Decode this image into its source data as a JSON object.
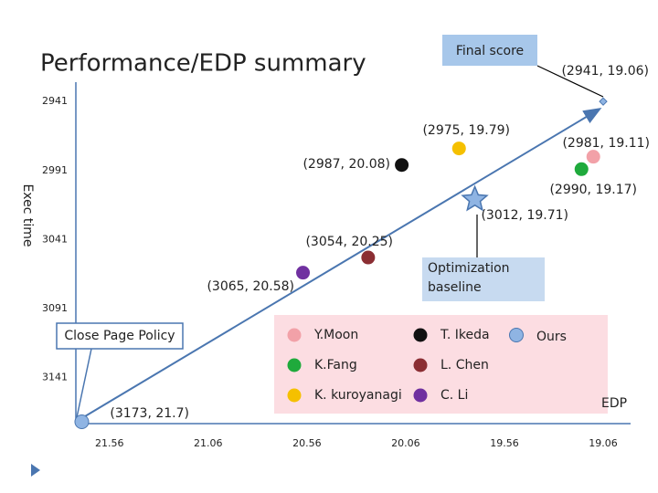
{
  "chart_data": {
    "type": "scatter",
    "title": "Performance/EDP summary",
    "xlabel": "EDP",
    "ylabel": "Exec time",
    "xlim": [
      21.73,
      19.0
    ],
    "ylim": [
      3173,
      2927
    ],
    "xticks": [
      21.56,
      21.06,
      20.56,
      20.06,
      19.56,
      19.06
    ],
    "yticks": [
      2941,
      2991,
      3041,
      3091,
      3141
    ],
    "annotations": [
      "Final score",
      "Optimization baseline",
      "Close Page Policy"
    ],
    "series": [
      {
        "name": "Y.Moon",
        "color": "#f2a1a8",
        "x": [
          19.11
        ],
        "values": [
          2981
        ],
        "value_labels": [
          "(2981, 19.11)"
        ]
      },
      {
        "name": "T. Ikeda",
        "color": "#111111",
        "x": [
          20.08
        ],
        "values": [
          2987
        ],
        "value_labels": [
          "(2987, 20.08)"
        ]
      },
      {
        "name": "Ours",
        "color": "#8fb4e3",
        "x": [
          19.06,
          19.71,
          21.7
        ],
        "values": [
          2941,
          3012,
          3173
        ],
        "value_labels": [
          "(2941, 19.06)",
          "(3012, 19.71)",
          "(3173, 21.7)"
        ]
      },
      {
        "name": "K.Fang",
        "color": "#1faa3c",
        "x": [
          19.17
        ],
        "values": [
          2990
        ],
        "value_labels": [
          "(2990, 19.17)"
        ]
      },
      {
        "name": "L. Chen",
        "color": "#8b2e33",
        "x": [
          20.25
        ],
        "values": [
          3054
        ],
        "value_labels": [
          "(3054, 20.25)"
        ]
      },
      {
        "name": "K. kuroyanagi",
        "color": "#f5c000",
        "x": [
          19.79
        ],
        "values": [
          2975
        ],
        "value_labels": [
          "(2975, 19.79)"
        ]
      },
      {
        "name": "C. Li",
        "color": "#7030a0",
        "x": [
          20.58
        ],
        "values": [
          3065
        ],
        "value_labels": [
          "(3065, 20.58)"
        ]
      }
    ]
  }
}
